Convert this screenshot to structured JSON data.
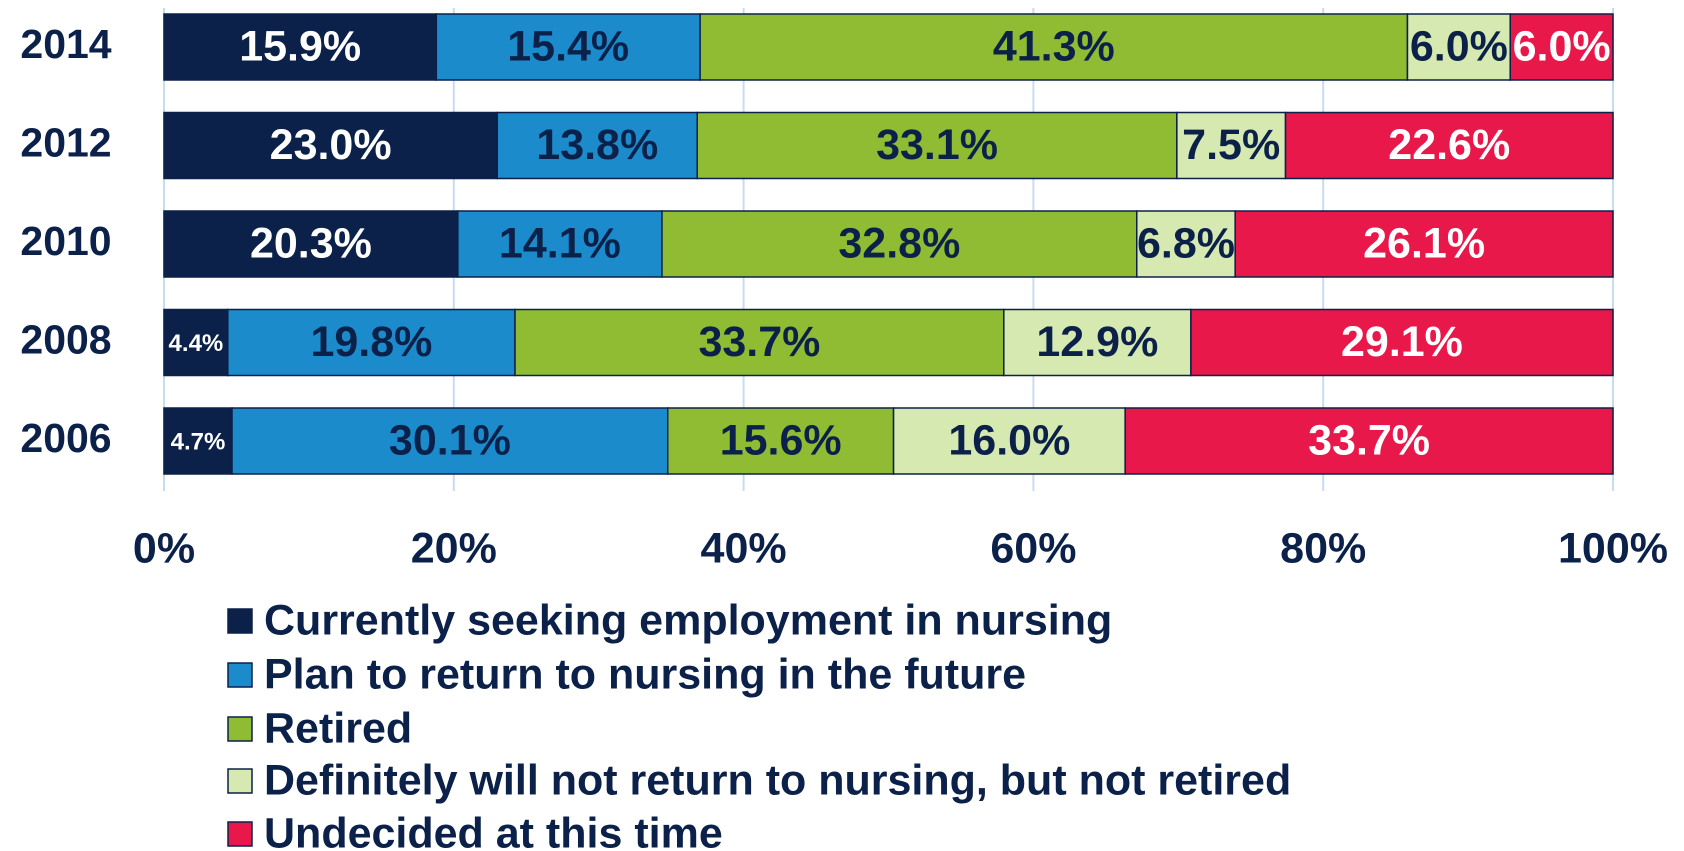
{
  "chart_data": {
    "type": "bar",
    "orientation": "horizontal",
    "stack": "percent",
    "categories": [
      "2014",
      "2012",
      "2010",
      "2008",
      "2006"
    ],
    "series": [
      {
        "name": "Currently seeking employment in nursing",
        "color": "#0b2149",
        "label_color": "#ffffff",
        "values": [
          15.9,
          23.0,
          20.3,
          4.4,
          4.7
        ],
        "value_labels": [
          "15.9%",
          "23.0%",
          "20.3%",
          "4.4%",
          "4.7%"
        ]
      },
      {
        "name": "Plan to return to nursing in the future",
        "color": "#1b8bcb",
        "label_color": "#0b2149",
        "values": [
          15.4,
          13.8,
          14.1,
          19.8,
          30.1
        ],
        "value_labels": [
          "15.4%",
          "13.8%",
          "14.1%",
          "19.8%",
          "30.1%"
        ]
      },
      {
        "name": "Retired",
        "color": "#8fbc32",
        "label_color": "#0b2149",
        "values": [
          41.3,
          33.1,
          32.8,
          33.7,
          15.6
        ],
        "value_labels": [
          "41.3%",
          "33.1%",
          "32.8%",
          "33.7%",
          "15.6%"
        ]
      },
      {
        "name": "Definitely will not return to nursing, but not retired",
        "color": "#d6e9b0",
        "label_color": "#0b2149",
        "values": [
          6.0,
          7.5,
          6.8,
          12.9,
          16.0
        ],
        "value_labels": [
          "6.0%",
          "7.5%",
          "6.8%",
          "12.9%",
          "16.0%"
        ]
      },
      {
        "name": "Undecided at this time",
        "color": "#e8184a",
        "label_color": "#ffffff",
        "values": [
          6.0,
          22.6,
          26.1,
          29.1,
          33.7
        ],
        "value_labels": [
          "6.0%",
          "22.6%",
          "26.1%",
          "29.1%",
          "33.7%"
        ]
      }
    ],
    "xlim": [
      0,
      100
    ],
    "xticks": [
      {
        "value": 0,
        "label": "0%"
      },
      {
        "value": 20,
        "label": "20%"
      },
      {
        "value": 40,
        "label": "40%"
      },
      {
        "value": 60,
        "label": "60%"
      },
      {
        "value": 80,
        "label": "80%"
      },
      {
        "value": 100,
        "label": "100%"
      }
    ],
    "grid": true
  }
}
